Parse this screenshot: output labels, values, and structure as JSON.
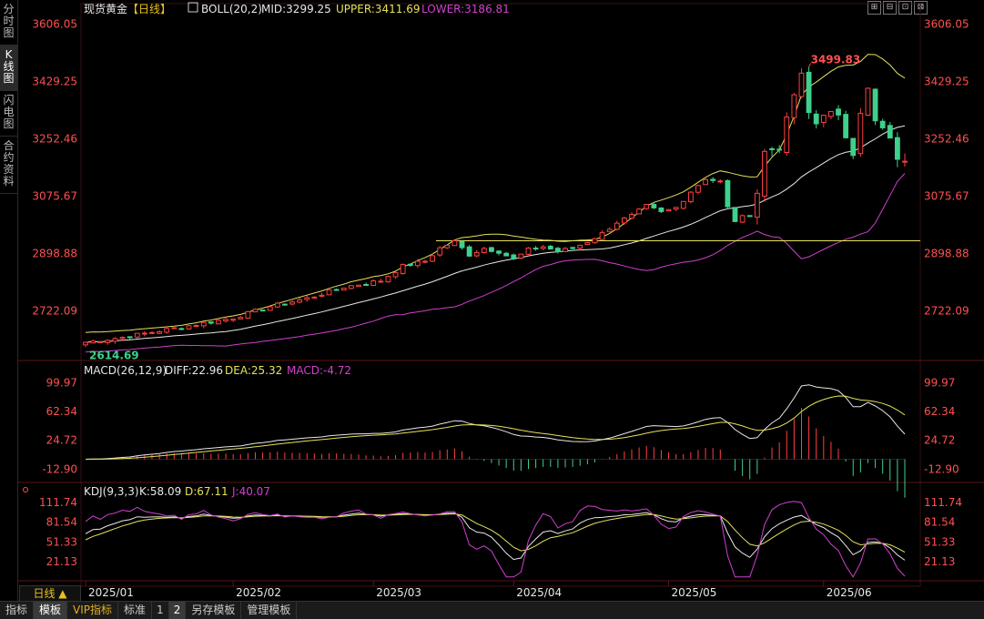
{
  "left_tabs": [
    "分时图",
    "K线图",
    "闪电图",
    "合约资料"
  ],
  "active_left_tab": 1,
  "header": {
    "instrument": "现货黄金",
    "period_tag": "【日线】",
    "indicator": "BOLL(20,2)",
    "mid": "MID:3299.25",
    "upper": "UPPER:3411.69",
    "lower": "LOWER:3186.81"
  },
  "window_buttons": [
    "⊞",
    "⊟",
    "⊡",
    "⊠"
  ],
  "price_axis": {
    "labels": [
      "3606.05",
      "3429.25",
      "3252.46",
      "3075.67",
      "2898.88",
      "2722.09"
    ],
    "values": [
      3606.05,
      3429.25,
      3252.46,
      3075.67,
      2898.88,
      2722.09
    ],
    "range": [
      2580,
      3630
    ]
  },
  "annotations": {
    "high": "3499.83",
    "low": "2614.69"
  },
  "macd": {
    "title": "MACD(26,12,9)",
    "diff": "DIFF:22.96",
    "dea": "DEA:25.32",
    "macd": "MACD:-4.72",
    "labels": [
      "99.97",
      "62.34",
      "24.72",
      "-12.90"
    ],
    "values": [
      99.97,
      62.34,
      24.72,
      -12.9
    ],
    "range": [
      -28,
      110
    ]
  },
  "kdj": {
    "title": "KDJ(9,3,3)",
    "k": "K:58.09",
    "d": "D:67.11",
    "j": "J:40.07",
    "labels": [
      "111.74",
      "81.54",
      "51.33",
      "21.13"
    ],
    "values": [
      111.74,
      81.54,
      51.33,
      21.13
    ],
    "range": [
      -5,
      120
    ]
  },
  "x_axis": {
    "labels": [
      "2025/01",
      "2025/02",
      "2025/03",
      "2025/04",
      "2025/05",
      "2025/06"
    ]
  },
  "period_button": "日线 ▲",
  "bottom_tabs": [
    "指标",
    "模板",
    "VIP指标",
    "标准",
    "1",
    "2",
    "另存模板",
    "管理模板"
  ],
  "colors": {
    "up": "#ff4040",
    "down": "#3ed08c",
    "upper": "#e6e25a",
    "mid": "#e8e8e8",
    "lower": "#d040d0",
    "dea": "#e6e25a",
    "macd": "#d040d0",
    "j": "#d040d0",
    "axis": "#ff5050"
  },
  "chart_data": {
    "type": "candlestick",
    "title": "现货黄金【日线】",
    "x_labels": [
      "2025/01",
      "2025/02",
      "2025/03",
      "2025/04",
      "2025/05",
      "2025/06"
    ],
    "period_start": "2025-01-01",
    "period_end": "2025-06-05",
    "approx_trading_days": 112,
    "visible_extremes": {
      "high": 3499.83,
      "low": 2614.69
    },
    "last_boll": {
      "mid": 3299.25,
      "upper": 3411.69,
      "lower": 3186.81
    },
    "last_macd": {
      "diff": 22.96,
      "dea": 25.32,
      "macd": -4.72
    },
    "last_kdj": {
      "k": 58.09,
      "d": 67.11,
      "j": 40.07
    },
    "close_path": [
      [
        0,
        2625
      ],
      [
        5,
        2640
      ],
      [
        10,
        2660
      ],
      [
        15,
        2680
      ],
      [
        20,
        2700
      ],
      [
        25,
        2735
      ],
      [
        30,
        2760
      ],
      [
        35,
        2795
      ],
      [
        40,
        2815
      ],
      [
        43,
        2860
      ],
      [
        46,
        2875
      ],
      [
        48,
        2915
      ],
      [
        50,
        2935
      ],
      [
        52,
        2895
      ],
      [
        54,
        2915
      ],
      [
        56,
        2905
      ],
      [
        58,
        2880
      ],
      [
        60,
        2910
      ],
      [
        62,
        2920
      ],
      [
        64,
        2905
      ],
      [
        66,
        2915
      ],
      [
        68,
        2935
      ],
      [
        70,
        2960
      ],
      [
        72,
        2995
      ],
      [
        74,
        3015
      ],
      [
        76,
        3045
      ],
      [
        78,
        3025
      ],
      [
        80,
        3040
      ],
      [
        82,
        3090
      ],
      [
        84,
        3130
      ],
      [
        86,
        3120
      ],
      [
        87,
        3040
      ],
      [
        88,
        3000
      ],
      [
        90,
        3020
      ],
      [
        91,
        3090
      ],
      [
        92,
        3210
      ],
      [
        94,
        3235
      ],
      [
        95,
        3300
      ],
      [
        96,
        3390
      ],
      [
        97,
        3440
      ],
      [
        98,
        3330
      ],
      [
        99,
        3300
      ],
      [
        100,
        3340
      ],
      [
        102,
        3310
      ],
      [
        104,
        3220
      ],
      [
        105,
        3345
      ],
      [
        106,
        3400
      ],
      [
        107,
        3300
      ],
      [
        108,
        3280
      ],
      [
        109,
        3240
      ],
      [
        110,
        3200
      ],
      [
        111,
        3170
      ],
      [
        112,
        3230
      ],
      [
        113,
        3290
      ],
      [
        114,
        3310
      ],
      [
        115,
        3300
      ],
      [
        116,
        3290
      ],
      [
        117,
        3330
      ],
      [
        118,
        3370
      ],
      [
        119,
        3360
      ],
      [
        120,
        3300
      ]
    ]
  }
}
